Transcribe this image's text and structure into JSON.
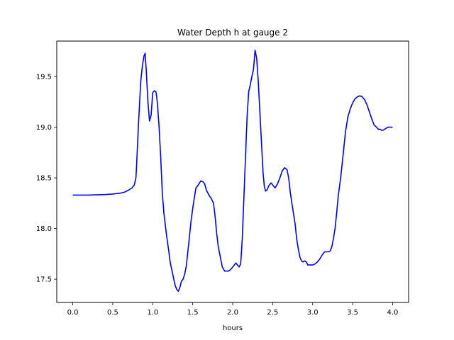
{
  "chart_data": {
    "type": "line",
    "title": "Water Depth h at gauge 2",
    "xlabel": "hours",
    "ylabel": "",
    "xlim": [
      -0.2,
      4.2
    ],
    "ylim": [
      17.27,
      19.85
    ],
    "xticks": [
      0.0,
      0.5,
      1.0,
      1.5,
      2.0,
      2.5,
      3.0,
      3.5,
      4.0
    ],
    "xtick_labels": [
      "0.0",
      "0.5",
      "1.0",
      "1.5",
      "2.0",
      "2.5",
      "3.0",
      "3.5",
      "4.0"
    ],
    "yticks": [
      17.5,
      18.0,
      18.5,
      19.0,
      19.5
    ],
    "ytick_labels": [
      "17.5",
      "18.0",
      "18.5",
      "19.0",
      "19.5"
    ],
    "grid": false,
    "color": "#0000ff",
    "series": [
      {
        "x": [
          0.0,
          0.2,
          0.4,
          0.5,
          0.6,
          0.65,
          0.7,
          0.74,
          0.77,
          0.79,
          0.8,
          0.82,
          0.85,
          0.87,
          0.89,
          0.905,
          0.92,
          0.94,
          0.96,
          0.98,
          1.0,
          1.02,
          1.04,
          1.05,
          1.06,
          1.08,
          1.1,
          1.12,
          1.14,
          1.17,
          1.2,
          1.22,
          1.25,
          1.28,
          1.3,
          1.32,
          1.34,
          1.36,
          1.38,
          1.4,
          1.42,
          1.45,
          1.48,
          1.51,
          1.54,
          1.57,
          1.6,
          1.63,
          1.65,
          1.67,
          1.69,
          1.71,
          1.73,
          1.76,
          1.78,
          1.8,
          1.82,
          1.85,
          1.87,
          1.9,
          1.93,
          1.95,
          1.98,
          2.0,
          2.02,
          2.04,
          2.06,
          2.08,
          2.1,
          2.12,
          2.14,
          2.16,
          2.18,
          2.2,
          2.22,
          2.24,
          2.26,
          2.28,
          2.3,
          2.32,
          2.34,
          2.36,
          2.38,
          2.395,
          2.41,
          2.43,
          2.45,
          2.48,
          2.5,
          2.53,
          2.56,
          2.59,
          2.62,
          2.65,
          2.68,
          2.7,
          2.72,
          2.74,
          2.76,
          2.78,
          2.8,
          2.82,
          2.84,
          2.86,
          2.88,
          2.9,
          2.92,
          2.94,
          2.97,
          3.0,
          3.03,
          3.06,
          3.09,
          3.12,
          3.15,
          3.18,
          3.2,
          3.22,
          3.24,
          3.26,
          3.28,
          3.3,
          3.32,
          3.35,
          3.38,
          3.41,
          3.44,
          3.47,
          3.5,
          3.53,
          3.56,
          3.59,
          3.62,
          3.65,
          3.68,
          3.71,
          3.74,
          3.77,
          3.8,
          3.82,
          3.84,
          3.86,
          3.88,
          3.9,
          3.92,
          3.94,
          3.96,
          3.98,
          4.0
        ],
        "y": [
          18.33,
          18.33,
          18.335,
          18.34,
          18.35,
          18.36,
          18.38,
          18.4,
          18.43,
          18.5,
          18.65,
          19.0,
          19.45,
          19.6,
          19.7,
          19.73,
          19.55,
          19.25,
          19.06,
          19.12,
          19.34,
          19.36,
          19.35,
          19.3,
          19.22,
          19.0,
          18.7,
          18.35,
          18.15,
          17.95,
          17.78,
          17.66,
          17.55,
          17.44,
          17.4,
          17.38,
          17.42,
          17.48,
          17.5,
          17.55,
          17.63,
          17.85,
          18.08,
          18.25,
          18.4,
          18.43,
          18.47,
          18.46,
          18.44,
          18.38,
          18.35,
          18.32,
          18.3,
          18.25,
          18.12,
          17.95,
          17.82,
          17.7,
          17.62,
          17.58,
          17.58,
          17.58,
          17.6,
          17.62,
          17.64,
          17.66,
          17.64,
          17.62,
          17.65,
          17.9,
          18.3,
          18.7,
          19.1,
          19.35,
          19.42,
          19.5,
          19.57,
          19.76,
          19.68,
          19.45,
          19.15,
          18.85,
          18.55,
          18.42,
          18.37,
          18.38,
          18.42,
          18.45,
          18.43,
          18.4,
          18.44,
          18.5,
          18.57,
          18.6,
          18.58,
          18.5,
          18.36,
          18.25,
          18.15,
          18.05,
          17.9,
          17.8,
          17.72,
          17.68,
          17.67,
          17.68,
          17.67,
          17.64,
          17.64,
          17.64,
          17.65,
          17.67,
          17.7,
          17.74,
          17.77,
          17.77,
          17.77,
          17.78,
          17.82,
          17.9,
          18.0,
          18.15,
          18.32,
          18.5,
          18.72,
          18.95,
          19.1,
          19.18,
          19.24,
          19.28,
          19.3,
          19.31,
          19.3,
          19.27,
          19.22,
          19.15,
          19.08,
          19.02,
          19.0,
          18.98,
          18.98,
          18.97,
          18.97,
          18.98,
          18.99,
          19.0,
          19.0,
          19.0,
          19.0
        ]
      }
    ]
  }
}
